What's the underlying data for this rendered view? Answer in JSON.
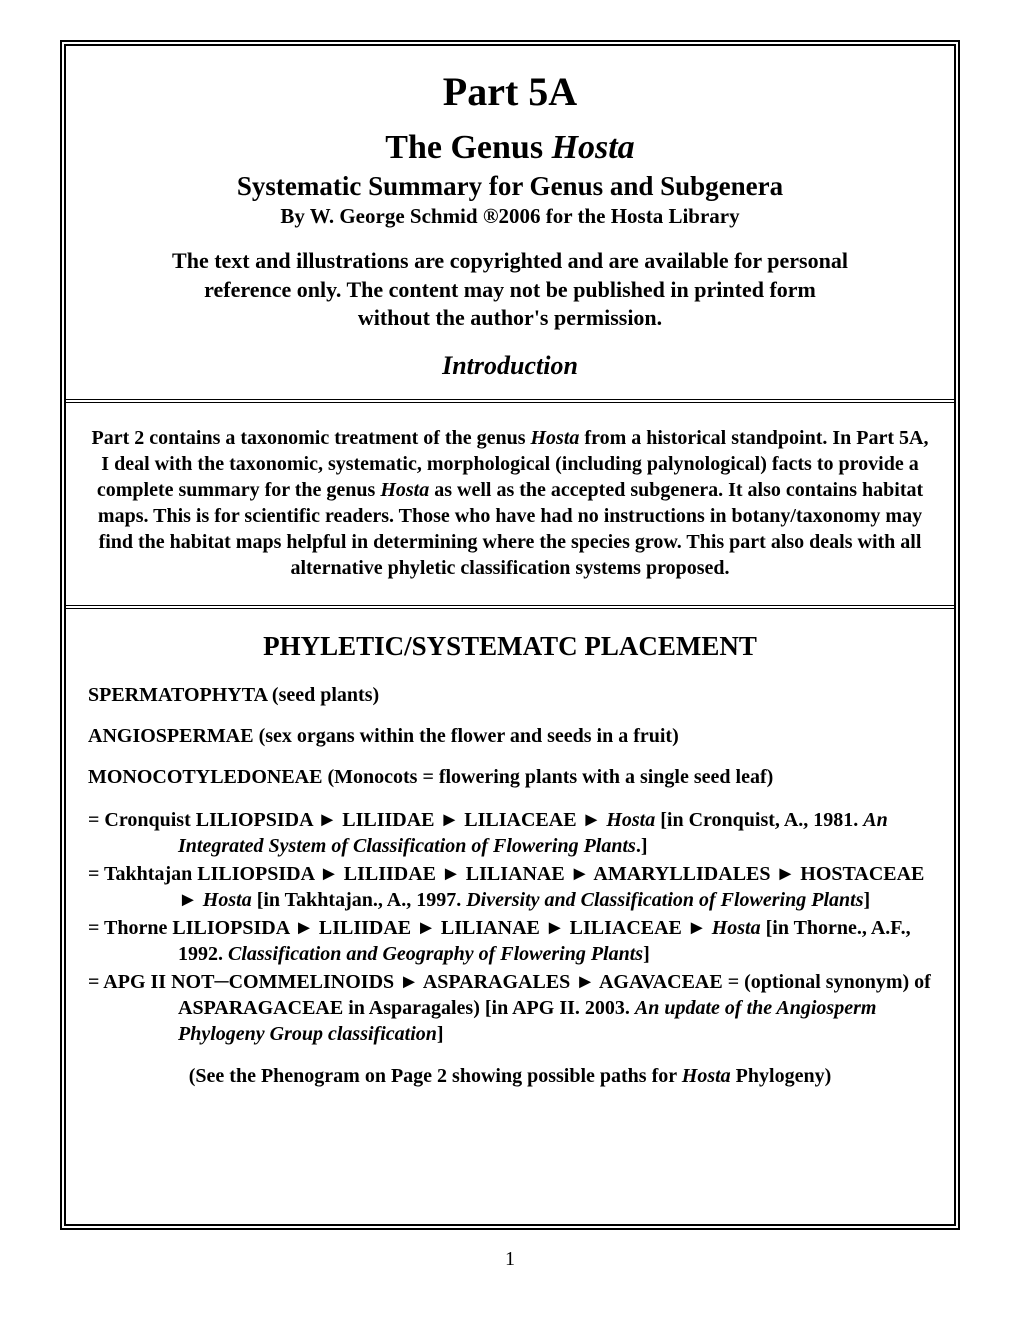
{
  "header": {
    "part_title": "Part 5A",
    "genus_title_prefix": "The Genus ",
    "genus_title_italic": "Hosta",
    "subtitle": "Systematic Summary for Genus  and Subgenera",
    "byline": "By W. George Schmid ®2006 for the Hosta Library",
    "copyright_line1": "The text and illustrations are copyrighted and are available for personal",
    "copyright_line2": "reference only. The content may not be published in printed form",
    "copyright_line3": "without the author's permission.",
    "introduction_label": "Introduction"
  },
  "intro": {
    "p1": "Part 2 contains a taxonomic treatment of the genus ",
    "p1_italic1": "Hosta",
    "p2": " from a historical standpoint. In Part 5A, I deal with the taxonomic, systematic, morphological (including palynological) facts to provide a complete summary for the genus ",
    "p2_italic1": "Hosta",
    "p3": " as well as the accepted subgenera. It also contains habitat maps. This is for scientific readers. Those who have had no instructions in botany/taxonomy may find the habitat maps helpful in determining where the species grow. This part also deals with all alternative phyletic classification systems proposed."
  },
  "body": {
    "section_heading": "PHYLETIC/SYSTEMATC PLACEMENT",
    "line1": "SPERMATOPHYTA (seed plants)",
    "line2": "ANGIOSPERMAE (sex organs within the flower and seeds in a fruit)",
    "line3": "MONOCOTYLEDONEAE (Monocots = flowering plants with a single seed leaf)",
    "entry1_a": "= Cronquist LILIOPSIDA ► LILIIDAE ► LILIACEAE ► ",
    "entry1_italic1": "Hosta",
    "entry1_b": " [in Cronquist, A., 1981. ",
    "entry1_italic2": "An Integrated System of Classification of Flowering Plants",
    "entry1_c": ".]",
    "entry2_a": "= Takhtajan LILIOPSIDA ► LILIIDAE ► LILIANAE ► AMARYLLIDALES ► HOSTACEAE ► ",
    "entry2_italic1": "Hosta",
    "entry2_b": " [in Takhtajan., A., 1997. ",
    "entry2_italic2": "Diversity and Classification of Flowering Plants",
    "entry2_c": "]",
    "entry3_a": "= Thorne LILIOPSIDA ► LILIIDAE ► LILIANAE ► LILIACEAE ► ",
    "entry3_italic1": "Hosta",
    "entry3_b": " [in Thorne., A.F., 1992. ",
    "entry3_italic2": "Classification and Geography of Flowering Plants",
    "entry3_c": "]",
    "entry4_a": "= APG II NOT─COMMELINOIDS ► ASPARAGALES  ► AGAVACEAE = (optional synonym) of ASPARAGACEAE in Asparagales) [in APG II. 2003. ",
    "entry4_italic1": "An update of the Angiosperm Phylogeny Group classification",
    "entry4_b": "]",
    "phenogram_a": "(See the Phenogram on Page 2 showing possible paths for ",
    "phenogram_italic": "Hosta",
    "phenogram_b": " Phylogeny)"
  },
  "page_number": "1",
  "colors": {
    "background": "#ffffff",
    "text": "#000000",
    "border": "#000000"
  }
}
